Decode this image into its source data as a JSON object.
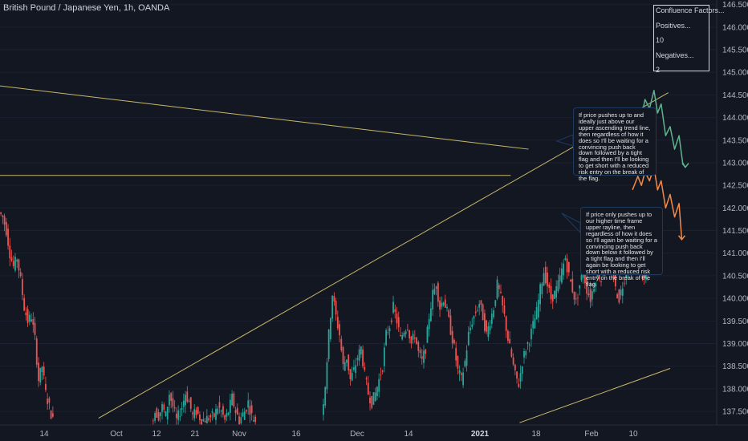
{
  "header": {
    "symbol_title": "British Pound / Japanese Yen, 1h, OANDA"
  },
  "confluence": {
    "title": "Confluence Factors...",
    "positives_label": "Positives...",
    "positives_value": "10",
    "negatives_label": "Negatives...",
    "negatives_value": "2"
  },
  "notes": {
    "upper": "If price pushes up to and ideally just above our upper ascending trend line, then regardless of how it does so I'll be waiting for a convincing push back down followed by a tight flag and then I'll be looking to get short with a reduced risk entry on the break of the flag.",
    "lower": "If price only pushes up to our higher time frame upper rayline, then regardless of how it does so I'll again be waiting for a convincing push back down below it followed by a tight flag and then I'll again be looking to get short with a reduced risk entry on the break of the flag."
  },
  "chart_data": {
    "type": "candlestick",
    "title": "British Pound / Japanese Yen, 1h, OANDA",
    "y_axis": {
      "min": 137.2,
      "max": 146.6,
      "tick_labels": [
        "146.500",
        "146.000",
        "145.500",
        "145.000",
        "144.500",
        "144.000",
        "143.500",
        "143.000",
        "142.500",
        "142.000",
        "141.500",
        "141.000",
        "140.500",
        "140.000",
        "139.500",
        "139.000",
        "138.500",
        "138.000",
        "137.500"
      ]
    },
    "x_axis": {
      "tick_labels": [
        {
          "label": "14",
          "bold": false
        },
        {
          "label": "Oct",
          "bold": false
        },
        {
          "label": "12",
          "bold": false
        },
        {
          "label": "21",
          "bold": false
        },
        {
          "label": "Nov",
          "bold": false
        },
        {
          "label": "16",
          "bold": false
        },
        {
          "label": "Dec",
          "bold": false
        },
        {
          "label": "14",
          "bold": false
        },
        {
          "label": "2021",
          "bold": true
        },
        {
          "label": "18",
          "bold": false
        },
        {
          "label": "Feb",
          "bold": false
        },
        {
          "label": "10",
          "bold": false
        }
      ]
    },
    "price_path": [
      [
        0.0,
        141.9
      ],
      [
        0.4,
        141.8
      ],
      [
        0.8,
        141.5
      ],
      [
        1.2,
        141.0
      ],
      [
        1.6,
        140.7
      ],
      [
        2.0,
        140.9
      ],
      [
        2.4,
        140.4
      ],
      [
        2.8,
        139.8
      ],
      [
        3.2,
        139.5
      ],
      [
        3.6,
        139.6
      ],
      [
        4.0,
        139.1
      ],
      [
        4.4,
        138.2
      ],
      [
        4.8,
        138.5
      ],
      [
        5.2,
        137.9
      ],
      [
        5.6,
        137.6
      ],
      [
        6.0,
        137.3
      ],
      [
        17.0,
        137.3
      ],
      [
        17.4,
        137.5
      ],
      [
        17.8,
        137.4
      ],
      [
        18.2,
        137.6
      ],
      [
        18.6,
        137.4
      ],
      [
        19.0,
        137.9
      ],
      [
        19.4,
        137.6
      ],
      [
        19.8,
        137.3
      ],
      [
        20.4,
        137.6
      ],
      [
        20.8,
        137.9
      ],
      [
        21.2,
        137.7
      ],
      [
        21.6,
        137.4
      ],
      [
        22.0,
        137.5
      ],
      [
        22.6,
        137.3
      ],
      [
        24.0,
        137.4
      ],
      [
        24.4,
        137.6
      ],
      [
        24.8,
        137.5
      ],
      [
        25.2,
        137.3
      ],
      [
        25.6,
        137.5
      ],
      [
        26.0,
        137.8
      ],
      [
        26.4,
        137.5
      ],
      [
        26.8,
        137.3
      ],
      [
        27.4,
        137.5
      ],
      [
        27.8,
        137.7
      ],
      [
        28.2,
        137.4
      ],
      [
        28.6,
        137.3
      ],
      [
        36.0,
        137.4
      ],
      [
        36.4,
        138.1
      ],
      [
        36.8,
        139.2
      ],
      [
        37.2,
        140.1
      ],
      [
        37.6,
        139.6
      ],
      [
        38.0,
        139.2
      ],
      [
        38.4,
        138.5
      ],
      [
        38.8,
        138.7
      ],
      [
        39.2,
        138.2
      ],
      [
        39.6,
        138.4
      ],
      [
        40.0,
        138.7
      ],
      [
        40.4,
        138.9
      ],
      [
        40.8,
        138.3
      ],
      [
        41.2,
        137.9
      ],
      [
        41.6,
        137.7
      ],
      [
        42.0,
        137.9
      ],
      [
        42.4,
        138.2
      ],
      [
        42.8,
        138.5
      ],
      [
        43.2,
        139.2
      ],
      [
        43.6,
        139.4
      ],
      [
        44.0,
        139.8
      ],
      [
        44.4,
        139.5
      ],
      [
        44.8,
        139.1
      ],
      [
        45.2,
        139.3
      ],
      [
        45.6,
        139.4
      ],
      [
        46.0,
        139.0
      ],
      [
        46.4,
        139.2
      ],
      [
        46.8,
        138.8
      ],
      [
        47.2,
        138.6
      ],
      [
        47.6,
        138.9
      ],
      [
        48.0,
        139.6
      ],
      [
        48.4,
        140.1
      ],
      [
        48.8,
        140.3
      ],
      [
        49.2,
        139.8
      ],
      [
        49.6,
        140.0
      ],
      [
        50.0,
        139.7
      ],
      [
        50.4,
        139.3
      ],
      [
        50.8,
        138.9
      ],
      [
        51.2,
        138.4
      ],
      [
        51.6,
        138.2
      ],
      [
        52.0,
        138.6
      ],
      [
        52.4,
        139.2
      ],
      [
        52.8,
        139.5
      ],
      [
        53.2,
        139.7
      ],
      [
        53.6,
        139.9
      ],
      [
        54.0,
        139.6
      ],
      [
        54.4,
        139.2
      ],
      [
        54.8,
        139.5
      ],
      [
        55.2,
        139.8
      ],
      [
        55.6,
        140.3
      ],
      [
        56.0,
        140.0
      ],
      [
        56.4,
        139.6
      ],
      [
        56.8,
        139.1
      ],
      [
        57.2,
        138.7
      ],
      [
        57.6,
        138.3
      ],
      [
        58.0,
        138.1
      ],
      [
        58.4,
        138.6
      ],
      [
        58.8,
        138.9
      ],
      [
        59.2,
        139.1
      ],
      [
        59.6,
        139.4
      ],
      [
        60.0,
        139.7
      ],
      [
        60.4,
        140.2
      ],
      [
        60.8,
        140.6
      ],
      [
        61.2,
        140.3
      ],
      [
        61.6,
        140.0
      ],
      [
        62.0,
        140.1
      ],
      [
        62.4,
        140.3
      ],
      [
        62.8,
        140.6
      ],
      [
        63.2,
        140.9
      ],
      [
        63.6,
        140.5
      ],
      [
        64.0,
        140.2
      ],
      [
        64.4,
        139.9
      ],
      [
        64.8,
        140.3
      ],
      [
        65.2,
        140.6
      ],
      [
        65.6,
        140.2
      ],
      [
        66.0,
        140.0
      ],
      [
        66.4,
        140.3
      ],
      [
        66.8,
        140.6
      ],
      [
        67.2,
        140.4
      ],
      [
        67.6,
        140.8
      ],
      [
        68.0,
        141.2
      ],
      [
        68.4,
        140.8
      ],
      [
        68.8,
        140.2
      ],
      [
        69.2,
        140.0
      ],
      [
        69.6,
        140.3
      ],
      [
        70.0,
        140.6
      ],
      [
        70.4,
        140.9
      ],
      [
        70.8,
        141.3
      ],
      [
        71.2,
        141.0
      ],
      [
        71.6,
        140.6
      ],
      [
        72.0,
        140.4
      ],
      [
        72.4,
        140.7
      ],
      [
        72.8,
        141.0
      ],
      [
        73.2,
        141.4
      ],
      [
        73.6,
        141.7
      ],
      [
        74.0,
        142.0
      ]
    ],
    "lines": {
      "upper_ascending_trendline": {
        "x": [
          11.0,
          74.6
        ],
        "y": [
          137.35,
          144.55
        ]
      },
      "descending_trendline": {
        "x": [
          0,
          59.0
        ],
        "y": [
          144.7,
          143.3
        ]
      },
      "horizontal_rayline": {
        "x": [
          0,
          57.0
        ],
        "y": [
          142.72,
          142.72
        ]
      },
      "lower_ascending_trendline": {
        "x": [
          58.0,
          74.8
        ],
        "y": [
          137.25,
          138.45
        ]
      }
    },
    "projections": {
      "upper_path": {
        "x": [
          70.6,
          71.2,
          71.6,
          72.0,
          72.5,
          73.0,
          73.4,
          73.8,
          74.3,
          74.8,
          75.3,
          75.8,
          76.2,
          76.5
        ],
        "y": [
          143.9,
          144.2,
          144.0,
          144.4,
          144.2,
          144.6,
          144.1,
          144.3,
          143.6,
          143.8,
          143.3,
          143.6,
          143.0,
          142.9
        ]
      },
      "lower_path": {
        "x": [
          70.6,
          71.2,
          71.6,
          72.0,
          72.5,
          73.0,
          73.4,
          73.8,
          74.3,
          74.8,
          75.3,
          75.8,
          76.1
        ],
        "y": [
          142.4,
          142.7,
          142.5,
          142.8,
          142.6,
          142.9,
          142.4,
          142.6,
          142.0,
          142.3,
          141.8,
          142.1,
          141.3
        ]
      }
    },
    "colors": {
      "up": "#26a69a",
      "down": "#ef5350",
      "trendline": "#c8b76a",
      "upper_projection": "#5fb38e",
      "lower_projection": "#f28a4a"
    }
  }
}
